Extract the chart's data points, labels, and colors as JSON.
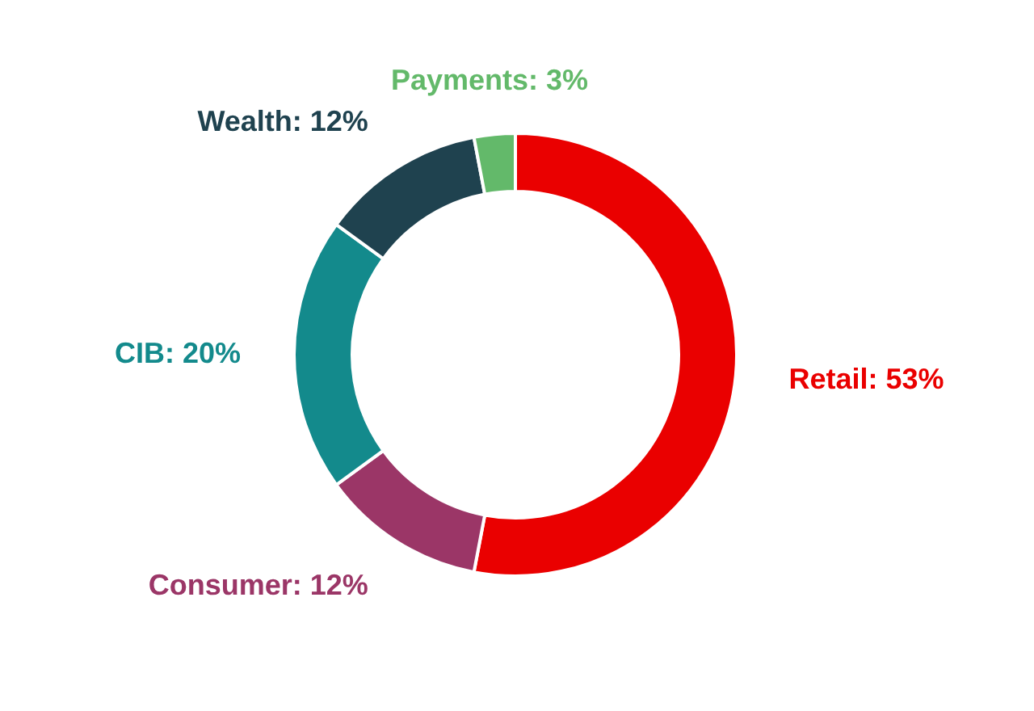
{
  "chart_data": {
    "type": "donut",
    "categories": [
      "Retail",
      "Consumer",
      "CIB",
      "Wealth",
      "Payments"
    ],
    "values": [
      53,
      12,
      20,
      12,
      3
    ],
    "colors": [
      "#ea0000",
      "#9b3667",
      "#138a8c",
      "#1f424f",
      "#63b96a"
    ],
    "value_labels": [
      "53%",
      "12%",
      "20%",
      "12%",
      "3%"
    ]
  }
}
